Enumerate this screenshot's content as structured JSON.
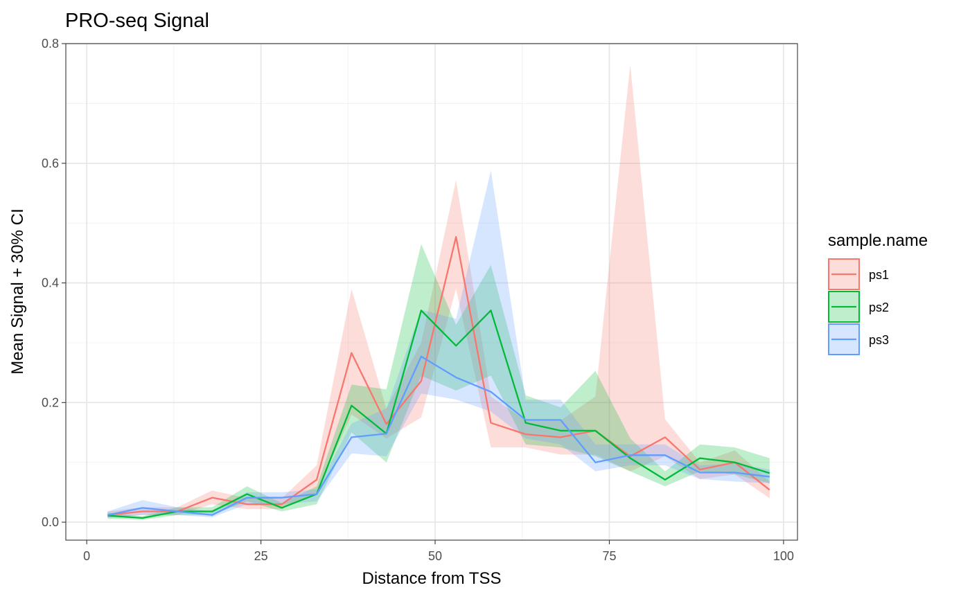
{
  "chart_data": {
    "type": "line",
    "title": "PRO-seq Signal",
    "xlabel": "Distance from TSS",
    "ylabel": "Mean Signal + 30% CI",
    "xlim": [
      -3,
      102
    ],
    "ylim": [
      -0.03,
      0.8
    ],
    "x_ticks": [
      0,
      25,
      50,
      75,
      100
    ],
    "x_tick_labels": [
      "0",
      "25",
      "50",
      "75",
      "100"
    ],
    "y_ticks": [
      0.0,
      0.2,
      0.4,
      0.6,
      0.8
    ],
    "y_tick_labels": [
      "0.0",
      "0.2",
      "0.4",
      "0.6",
      "0.8"
    ],
    "grid": true,
    "legend": {
      "title": "sample.name",
      "position": "right"
    },
    "x": [
      3,
      8,
      13,
      18,
      23,
      28,
      33,
      38,
      43,
      48,
      53,
      58,
      63,
      68,
      73,
      78,
      83,
      88,
      93,
      98
    ],
    "series": [
      {
        "name": "ps1",
        "color": "#F8766D",
        "values": [
          0.012,
          0.018,
          0.018,
          0.041,
          0.03,
          0.03,
          0.071,
          0.283,
          0.164,
          0.236,
          0.477,
          0.166,
          0.147,
          0.142,
          0.153,
          0.11,
          0.142,
          0.088,
          0.1,
          0.054
        ],
        "lower": [
          0.008,
          0.012,
          0.012,
          0.03,
          0.022,
          0.022,
          0.05,
          0.18,
          0.14,
          0.175,
          0.39,
          0.125,
          0.125,
          0.113,
          0.113,
          0.085,
          0.11,
          0.072,
          0.08,
          0.04
        ],
        "upper": [
          0.018,
          0.025,
          0.025,
          0.053,
          0.04,
          0.04,
          0.095,
          0.39,
          0.19,
          0.3,
          0.572,
          0.21,
          0.17,
          0.17,
          0.21,
          0.765,
          0.172,
          0.1,
          0.12,
          0.068
        ]
      },
      {
        "name": "ps2",
        "color": "#00BA38",
        "values": [
          0.011,
          0.007,
          0.018,
          0.018,
          0.047,
          0.024,
          0.047,
          0.195,
          0.148,
          0.354,
          0.295,
          0.354,
          0.166,
          0.153,
          0.153,
          0.107,
          0.071,
          0.107,
          0.1,
          0.082
        ],
        "lower": [
          0.006,
          0.004,
          0.012,
          0.012,
          0.035,
          0.018,
          0.03,
          0.15,
          0.1,
          0.245,
          0.22,
          0.245,
          0.13,
          0.125,
          0.11,
          0.085,
          0.06,
          0.085,
          0.08,
          0.065
        ],
        "upper": [
          0.016,
          0.01,
          0.025,
          0.025,
          0.06,
          0.032,
          0.06,
          0.23,
          0.222,
          0.465,
          0.33,
          0.43,
          0.212,
          0.192,
          0.253,
          0.14,
          0.085,
          0.13,
          0.125,
          0.107
        ]
      },
      {
        "name": "ps3",
        "color": "#619CFF",
        "values": [
          0.012,
          0.024,
          0.018,
          0.012,
          0.041,
          0.041,
          0.047,
          0.142,
          0.148,
          0.277,
          0.242,
          0.218,
          0.171,
          0.171,
          0.1,
          0.112,
          0.112,
          0.083,
          0.083,
          0.076
        ],
        "lower": [
          0.007,
          0.012,
          0.012,
          0.008,
          0.03,
          0.03,
          0.035,
          0.115,
          0.11,
          0.215,
          0.205,
          0.185,
          0.14,
          0.13,
          0.085,
          0.095,
          0.095,
          0.072,
          0.068,
          0.065
        ],
        "upper": [
          0.018,
          0.037,
          0.025,
          0.018,
          0.05,
          0.05,
          0.055,
          0.165,
          0.19,
          0.355,
          0.34,
          0.588,
          0.205,
          0.205,
          0.13,
          0.13,
          0.13,
          0.095,
          0.098,
          0.088
        ]
      }
    ]
  }
}
